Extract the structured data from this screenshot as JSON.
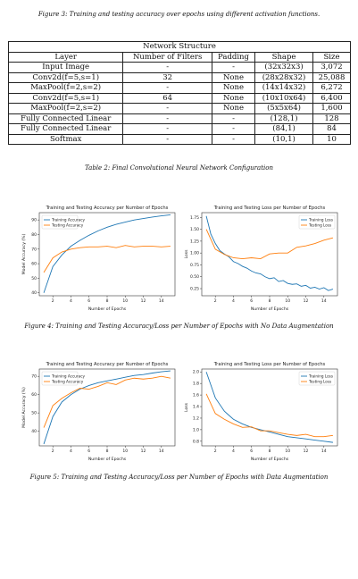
{
  "figure3_caption": "Figure 3: Training and testing accuracy over epochs using different activation functions.",
  "table": {
    "title": "Network Structure",
    "headers": [
      "Layer",
      "Number of Filters",
      "Padding",
      "Shape",
      "Size"
    ],
    "rows": [
      [
        "Input Image",
        "-",
        "-",
        "(32x32x3)",
        "3,072"
      ],
      [
        "Conv2d(f=5,s=1)",
        "32",
        "None",
        "(28x28x32)",
        "25,088"
      ],
      [
        "MaxPool(f=2,s=2)",
        "-",
        "None",
        "(14x14x32)",
        "6,272"
      ],
      [
        "Conv2d(f=5,s=1)",
        "64",
        "None",
        "(10x10x64)",
        "6,400"
      ],
      [
        "MaxPool(f=2,s=2)",
        "-",
        "None",
        "(5x5x64)",
        "1,600"
      ],
      [
        "Fully Connected Linear",
        "-",
        "-",
        "(128,1)",
        "128"
      ],
      [
        "Fully Connected Linear",
        "-",
        "-",
        "(84,1)",
        "84"
      ],
      [
        "Softmax",
        "-",
        "-",
        "(10,1)",
        "10"
      ]
    ],
    "caption": "Table 2: Final Convolutional Neural Network Configuration"
  },
  "figure4_caption": "Figure 4: Training and Testing Accuracy/Loss per Number of Epochs with No Data Augmentation",
  "figure5_caption": "Figure 5: Training and Testing Accuracy/Loss per Number of Epochs with Data Augmentation",
  "colors": {
    "train": "#1f77b4",
    "test": "#ff7f0e",
    "axis": "#333333"
  },
  "chart_data": [
    {
      "type": "line",
      "title": "Training and Testing Accuracy per Number of Epochs",
      "xlabel": "Number of Epochs",
      "ylabel": "Model Accuracy (%)",
      "xlim": [
        0.5,
        15.5
      ],
      "ylim": [
        38,
        95
      ],
      "xticks": [
        2,
        4,
        6,
        8,
        10,
        12,
        14
      ],
      "yticks": [
        40,
        50,
        60,
        70,
        80,
        90
      ],
      "legend": "top-left",
      "series": [
        {
          "name": "Training Accuracy",
          "color": "#1f77b4",
          "x": [
            1,
            2,
            3,
            4,
            5,
            6,
            7,
            8,
            9,
            10,
            11,
            12,
            13,
            14,
            15
          ],
          "y": [
            40,
            58,
            66,
            72,
            76,
            79.5,
            82.5,
            85,
            87,
            88.5,
            90,
            91,
            92,
            92.8,
            93.5
          ]
        },
        {
          "name": "Testing Accuracy",
          "color": "#ff7f0e",
          "x": [
            1,
            2,
            3,
            4,
            5,
            6,
            7,
            8,
            9,
            10,
            11,
            12,
            13,
            14,
            15
          ],
          "y": [
            54,
            64,
            68,
            70,
            71,
            71.5,
            71.5,
            72,
            71,
            72.5,
            71.5,
            72,
            72,
            71.5,
            72
          ]
        }
      ]
    },
    {
      "type": "line",
      "title": "Training and Testing Loss per Number of Epochs",
      "xlabel": "Number of Epochs",
      "ylabel": "Loss",
      "xlim": [
        0.5,
        15.5
      ],
      "ylim": [
        0.1,
        1.85
      ],
      "xticks": [
        2,
        4,
        6,
        8,
        10,
        12,
        14
      ],
      "yticks": [
        0.25,
        0.5,
        0.75,
        1.0,
        1.25,
        1.5,
        1.75
      ],
      "yticklabels": [
        "0.25",
        "0.50",
        "0.75",
        "1.00",
        "1.25",
        "1.50",
        "1.75"
      ],
      "legend": "top-right",
      "series": [
        {
          "name": "Training Loss",
          "color": "#1f77b4",
          "x": [
            1,
            1.5,
            2,
            2.5,
            3,
            3.5,
            4,
            4.5,
            5,
            5.5,
            6,
            6.5,
            7,
            7.5,
            8,
            8.5,
            9,
            9.5,
            10,
            10.5,
            11,
            11.5,
            12,
            12.5,
            13,
            13.5,
            14,
            14.5,
            15
          ],
          "y": [
            1.78,
            1.4,
            1.2,
            1.05,
            0.98,
            0.92,
            0.82,
            0.78,
            0.72,
            0.68,
            0.62,
            0.58,
            0.56,
            0.5,
            0.46,
            0.48,
            0.4,
            0.42,
            0.36,
            0.34,
            0.35,
            0.3,
            0.32,
            0.26,
            0.28,
            0.24,
            0.27,
            0.21,
            0.24
          ]
        },
        {
          "name": "Testing Loss",
          "color": "#ff7f0e",
          "x": [
            1,
            2,
            3,
            4,
            5,
            6,
            7,
            8,
            9,
            10,
            11,
            12,
            13,
            14,
            15
          ],
          "y": [
            1.5,
            1.08,
            0.97,
            0.9,
            0.88,
            0.9,
            0.88,
            0.98,
            1.0,
            1.0,
            1.12,
            1.15,
            1.2,
            1.27,
            1.32
          ]
        }
      ]
    },
    {
      "type": "line",
      "title": "Training and Testing Accuracy per Number of Epochs",
      "xlabel": "Number of Epochs",
      "ylabel": "Model Accuracy (%)",
      "xlim": [
        0.5,
        15.5
      ],
      "ylim": [
        32,
        74
      ],
      "xticks": [
        2,
        4,
        6,
        8,
        10,
        12,
        14
      ],
      "yticks": [
        40,
        50,
        60,
        70
      ],
      "legend": "top-left",
      "series": [
        {
          "name": "Training Accuracy",
          "color": "#1f77b4",
          "x": [
            1,
            2,
            3,
            4,
            5,
            6,
            7,
            8,
            9,
            10,
            11,
            12,
            13,
            14,
            15
          ],
          "y": [
            33,
            48,
            56,
            60,
            63,
            65,
            66.5,
            67.5,
            68.5,
            69.5,
            70.5,
            71,
            71.8,
            72.5,
            73
          ]
        },
        {
          "name": "Testing Accuracy",
          "color": "#ff7f0e",
          "x": [
            1,
            2,
            3,
            4,
            5,
            6,
            7,
            8,
            9,
            10,
            11,
            12,
            13,
            14,
            15
          ],
          "y": [
            42,
            54,
            58,
            61,
            63.5,
            63,
            64.5,
            66.5,
            65.5,
            68,
            69,
            68.5,
            69,
            70,
            69
          ]
        }
      ]
    },
    {
      "type": "line",
      "title": "Training and Testing Loss per Number of Epochs",
      "xlabel": "Number of Epochs",
      "ylabel": "Loss",
      "xlim": [
        0.5,
        15.5
      ],
      "ylim": [
        0.72,
        2.05
      ],
      "xticks": [
        2,
        4,
        6,
        8,
        10,
        12,
        14
      ],
      "yticks": [
        0.8,
        1.0,
        1.2,
        1.4,
        1.6,
        1.8,
        2.0
      ],
      "yticklabels": [
        "0.8",
        "1.0",
        "1.2",
        "1.4",
        "1.6",
        "1.8",
        "2.0"
      ],
      "legend": "top-right",
      "series": [
        {
          "name": "Training Loss",
          "color": "#1f77b4",
          "x": [
            1,
            2,
            3,
            4,
            5,
            6,
            7,
            8,
            9,
            10,
            11,
            12,
            13,
            14,
            15
          ],
          "y": [
            2.0,
            1.55,
            1.32,
            1.18,
            1.1,
            1.04,
            1.0,
            0.96,
            0.92,
            0.88,
            0.86,
            0.84,
            0.82,
            0.8,
            0.78
          ]
        },
        {
          "name": "Testing Loss",
          "color": "#ff7f0e",
          "x": [
            1,
            2,
            3,
            4,
            5,
            6,
            7,
            8,
            9,
            10,
            11,
            12,
            13,
            14,
            15
          ],
          "y": [
            1.62,
            1.28,
            1.18,
            1.1,
            1.04,
            1.05,
            0.98,
            0.98,
            0.95,
            0.92,
            0.9,
            0.92,
            0.88,
            0.88,
            0.9
          ]
        }
      ]
    }
  ]
}
